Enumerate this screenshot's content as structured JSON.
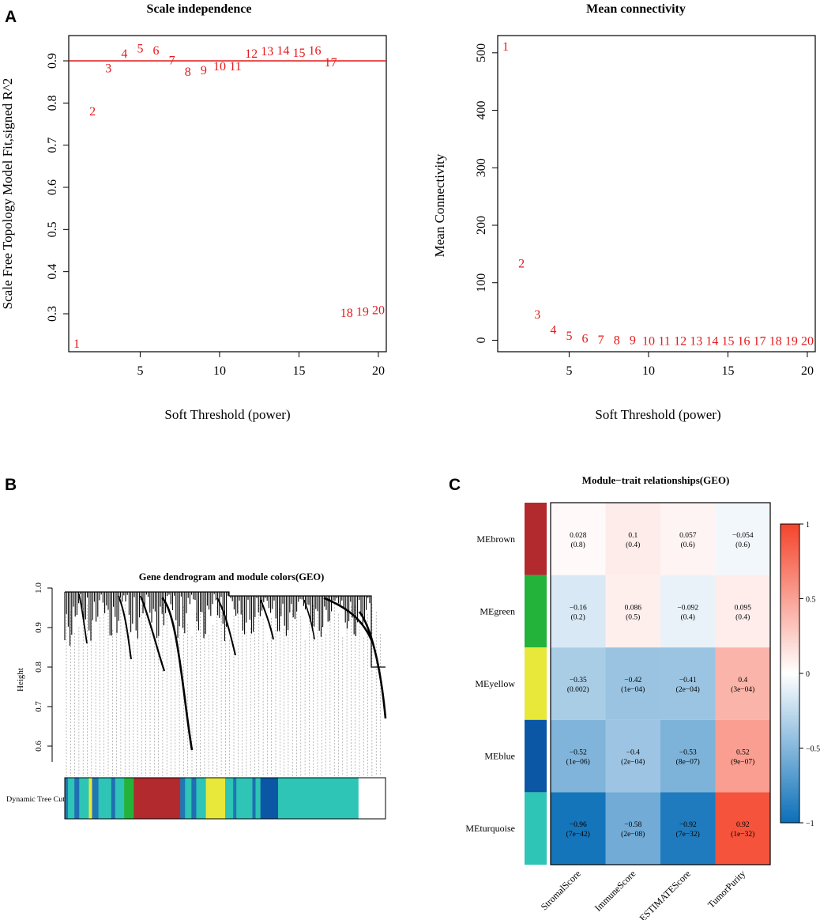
{
  "panels": {
    "A": "A",
    "B": "B",
    "C": "C"
  },
  "chart_data": [
    {
      "id": "scale-independence",
      "type": "scatter",
      "marker": "text-labels",
      "title": "Scale independence",
      "xlabel": "Soft Threshold (power)",
      "ylabel": "Scale Free Topology Model Fit,signed R^2",
      "xlim": [
        0.5,
        20.5
      ],
      "ylim": [
        0.21,
        0.96
      ],
      "xticks": [
        5,
        10,
        15,
        20
      ],
      "yticks": [
        0.3,
        0.4,
        0.5,
        0.6,
        0.7,
        0.8,
        0.9
      ],
      "hline": 0.9,
      "color": "#e31a1c",
      "points": [
        {
          "x": 1,
          "y": 0.231,
          "label": "1"
        },
        {
          "x": 2,
          "y": 0.782,
          "label": "2"
        },
        {
          "x": 3,
          "y": 0.884,
          "label": "3"
        },
        {
          "x": 4,
          "y": 0.919,
          "label": "4"
        },
        {
          "x": 5,
          "y": 0.931,
          "label": "5"
        },
        {
          "x": 6,
          "y": 0.926,
          "label": "6"
        },
        {
          "x": 7,
          "y": 0.903,
          "label": "7"
        },
        {
          "x": 8,
          "y": 0.876,
          "label": "8"
        },
        {
          "x": 9,
          "y": 0.879,
          "label": "9"
        },
        {
          "x": 10,
          "y": 0.889,
          "label": "10"
        },
        {
          "x": 11,
          "y": 0.889,
          "label": "11"
        },
        {
          "x": 12,
          "y": 0.919,
          "label": "12"
        },
        {
          "x": 13,
          "y": 0.924,
          "label": "13"
        },
        {
          "x": 14,
          "y": 0.926,
          "label": "14"
        },
        {
          "x": 15,
          "y": 0.921,
          "label": "15"
        },
        {
          "x": 16,
          "y": 0.926,
          "label": "16"
        },
        {
          "x": 17,
          "y": 0.898,
          "label": "17"
        },
        {
          "x": 18,
          "y": 0.304,
          "label": "18"
        },
        {
          "x": 19,
          "y": 0.307,
          "label": "19"
        },
        {
          "x": 20,
          "y": 0.31,
          "label": "20"
        }
      ]
    },
    {
      "id": "mean-connectivity",
      "type": "scatter",
      "marker": "text-labels",
      "title": "Mean connectivity",
      "xlabel": "Soft Threshold (power)",
      "ylabel": "Mean Connectivity",
      "xlim": [
        0.5,
        20.5
      ],
      "ylim": [
        -20,
        530
      ],
      "xticks": [
        5,
        10,
        15,
        20
      ],
      "yticks": [
        0,
        100,
        200,
        300,
        400,
        500
      ],
      "color": "#e31a1c",
      "points": [
        {
          "x": 1,
          "y": 512,
          "label": "1"
        },
        {
          "x": 2,
          "y": 135,
          "label": "2"
        },
        {
          "x": 3,
          "y": 46,
          "label": "3"
        },
        {
          "x": 4,
          "y": 19,
          "label": "4"
        },
        {
          "x": 5,
          "y": 9,
          "label": "5"
        },
        {
          "x": 6,
          "y": 4,
          "label": "6"
        },
        {
          "x": 7,
          "y": 2,
          "label": "7"
        },
        {
          "x": 8,
          "y": 1,
          "label": "8"
        },
        {
          "x": 9,
          "y": 1,
          "label": "9"
        },
        {
          "x": 10,
          "y": 0,
          "label": "10"
        },
        {
          "x": 11,
          "y": 0,
          "label": "11"
        },
        {
          "x": 12,
          "y": 0,
          "label": "12"
        },
        {
          "x": 13,
          "y": 0,
          "label": "13"
        },
        {
          "x": 14,
          "y": 0,
          "label": "14"
        },
        {
          "x": 15,
          "y": 0,
          "label": "15"
        },
        {
          "x": 16,
          "y": 0,
          "label": "16"
        },
        {
          "x": 17,
          "y": 0,
          "label": "17"
        },
        {
          "x": 18,
          "y": 0,
          "label": "18"
        },
        {
          "x": 19,
          "y": 0,
          "label": "19"
        },
        {
          "x": 20,
          "y": 0,
          "label": "20"
        }
      ]
    },
    {
      "id": "gene-dendrogram",
      "type": "dendrogram",
      "title": "Gene dendrogram and module colors(GEO)",
      "ylabel": "Height",
      "ylim": [
        0.56,
        1.0
      ],
      "yticks": [
        0.6,
        0.7,
        0.8,
        0.9,
        1.0
      ],
      "colorbar_label": "Dynamic Tree Cut",
      "module_segments": [
        {
          "color": "#1f77b4",
          "fraction": 0.01
        },
        {
          "color": "#2ec4b6",
          "fraction": 0.02
        },
        {
          "color": "#1f6fb2",
          "fraction": 0.015
        },
        {
          "color": "#2ec4b6",
          "fraction": 0.03
        },
        {
          "color": "#e8e83a",
          "fraction": 0.01
        },
        {
          "color": "#1f77b4",
          "fraction": 0.02
        },
        {
          "color": "#2ec4b6",
          "fraction": 0.04
        },
        {
          "color": "#1f6fb2",
          "fraction": 0.012
        },
        {
          "color": "#2ec4b6",
          "fraction": 0.028
        },
        {
          "color": "#23b33a",
          "fraction": 0.03
        },
        {
          "color": "#b22a2e",
          "fraction": 0.145
        },
        {
          "color": "#1f77b4",
          "fraction": 0.015
        },
        {
          "color": "#2ec4b6",
          "fraction": 0.02
        },
        {
          "color": "#1f6fb2",
          "fraction": 0.015
        },
        {
          "color": "#2ec4b6",
          "fraction": 0.03
        },
        {
          "color": "#e8e83a",
          "fraction": 0.06
        },
        {
          "color": "#2ec4b6",
          "fraction": 0.025
        },
        {
          "color": "#1f77b4",
          "fraction": 0.01
        },
        {
          "color": "#2ec4b6",
          "fraction": 0.05
        },
        {
          "color": "#1f6fb2",
          "fraction": 0.01
        },
        {
          "color": "#2ec4b6",
          "fraction": 0.015
        },
        {
          "color": "#0b57a6",
          "fraction": 0.055
        },
        {
          "color": "#2ec4b6",
          "fraction": 0.25
        }
      ]
    },
    {
      "id": "module-trait",
      "type": "heatmap",
      "title": "Module−trait relationships(GEO)",
      "rows": [
        "MEbrown",
        "MEgreen",
        "MEyellow",
        "MEblue",
        "MEturquoise"
      ],
      "row_colors": [
        "#b22a2e",
        "#23b33a",
        "#e8e83a",
        "#0b57a6",
        "#2ec4b6"
      ],
      "columns": [
        "StromalScore",
        "ImmuneScore",
        "ESTIMATEScore",
        "TumorPurity"
      ],
      "values": [
        [
          0.028,
          0.1,
          0.057,
          -0.054
        ],
        [
          -0.16,
          0.086,
          -0.092,
          0.095
        ],
        [
          -0.35,
          -0.42,
          -0.41,
          0.4
        ],
        [
          -0.52,
          -0.4,
          -0.53,
          0.52
        ],
        [
          -0.96,
          -0.58,
          -0.92,
          0.92
        ]
      ],
      "value_labels": [
        [
          "0.028",
          "0.1",
          "0.057",
          "−0.054"
        ],
        [
          "−0.16",
          "0.086",
          "−0.092",
          "0.095"
        ],
        [
          "−0.35",
          "−0.42",
          "−0.41",
          "0.4"
        ],
        [
          "−0.52",
          "−0.4",
          "−0.53",
          "0.52"
        ],
        [
          "−0.96",
          "−0.58",
          "−0.92",
          "0.92"
        ]
      ],
      "pvalue_labels": [
        [
          "(0.8)",
          "(0.4)",
          "(0.6)",
          "(0.6)"
        ],
        [
          "(0.2)",
          "(0.5)",
          "(0.4)",
          "(0.4)"
        ],
        [
          "(0.002)",
          "(1e−04)",
          "(2e−04)",
          "(3e−04)"
        ],
        [
          "(1e−06)",
          "(2e−04)",
          "(8e−07)",
          "(9e−07)"
        ],
        [
          "(7e−42)",
          "(2e−08)",
          "(7e−32)",
          "(1e−32)"
        ]
      ],
      "scale_range": [
        -1,
        1
      ],
      "scale_ticks": [
        1,
        0.5,
        0,
        -0.5,
        -1
      ],
      "scale_tick_labels": [
        "1",
        "0.5",
        "0",
        "−0.5",
        "−1"
      ],
      "scale_colors": {
        "negative": "#0b6fb8",
        "mid": "#ffffff",
        "positive": "#f4442b"
      }
    }
  ]
}
